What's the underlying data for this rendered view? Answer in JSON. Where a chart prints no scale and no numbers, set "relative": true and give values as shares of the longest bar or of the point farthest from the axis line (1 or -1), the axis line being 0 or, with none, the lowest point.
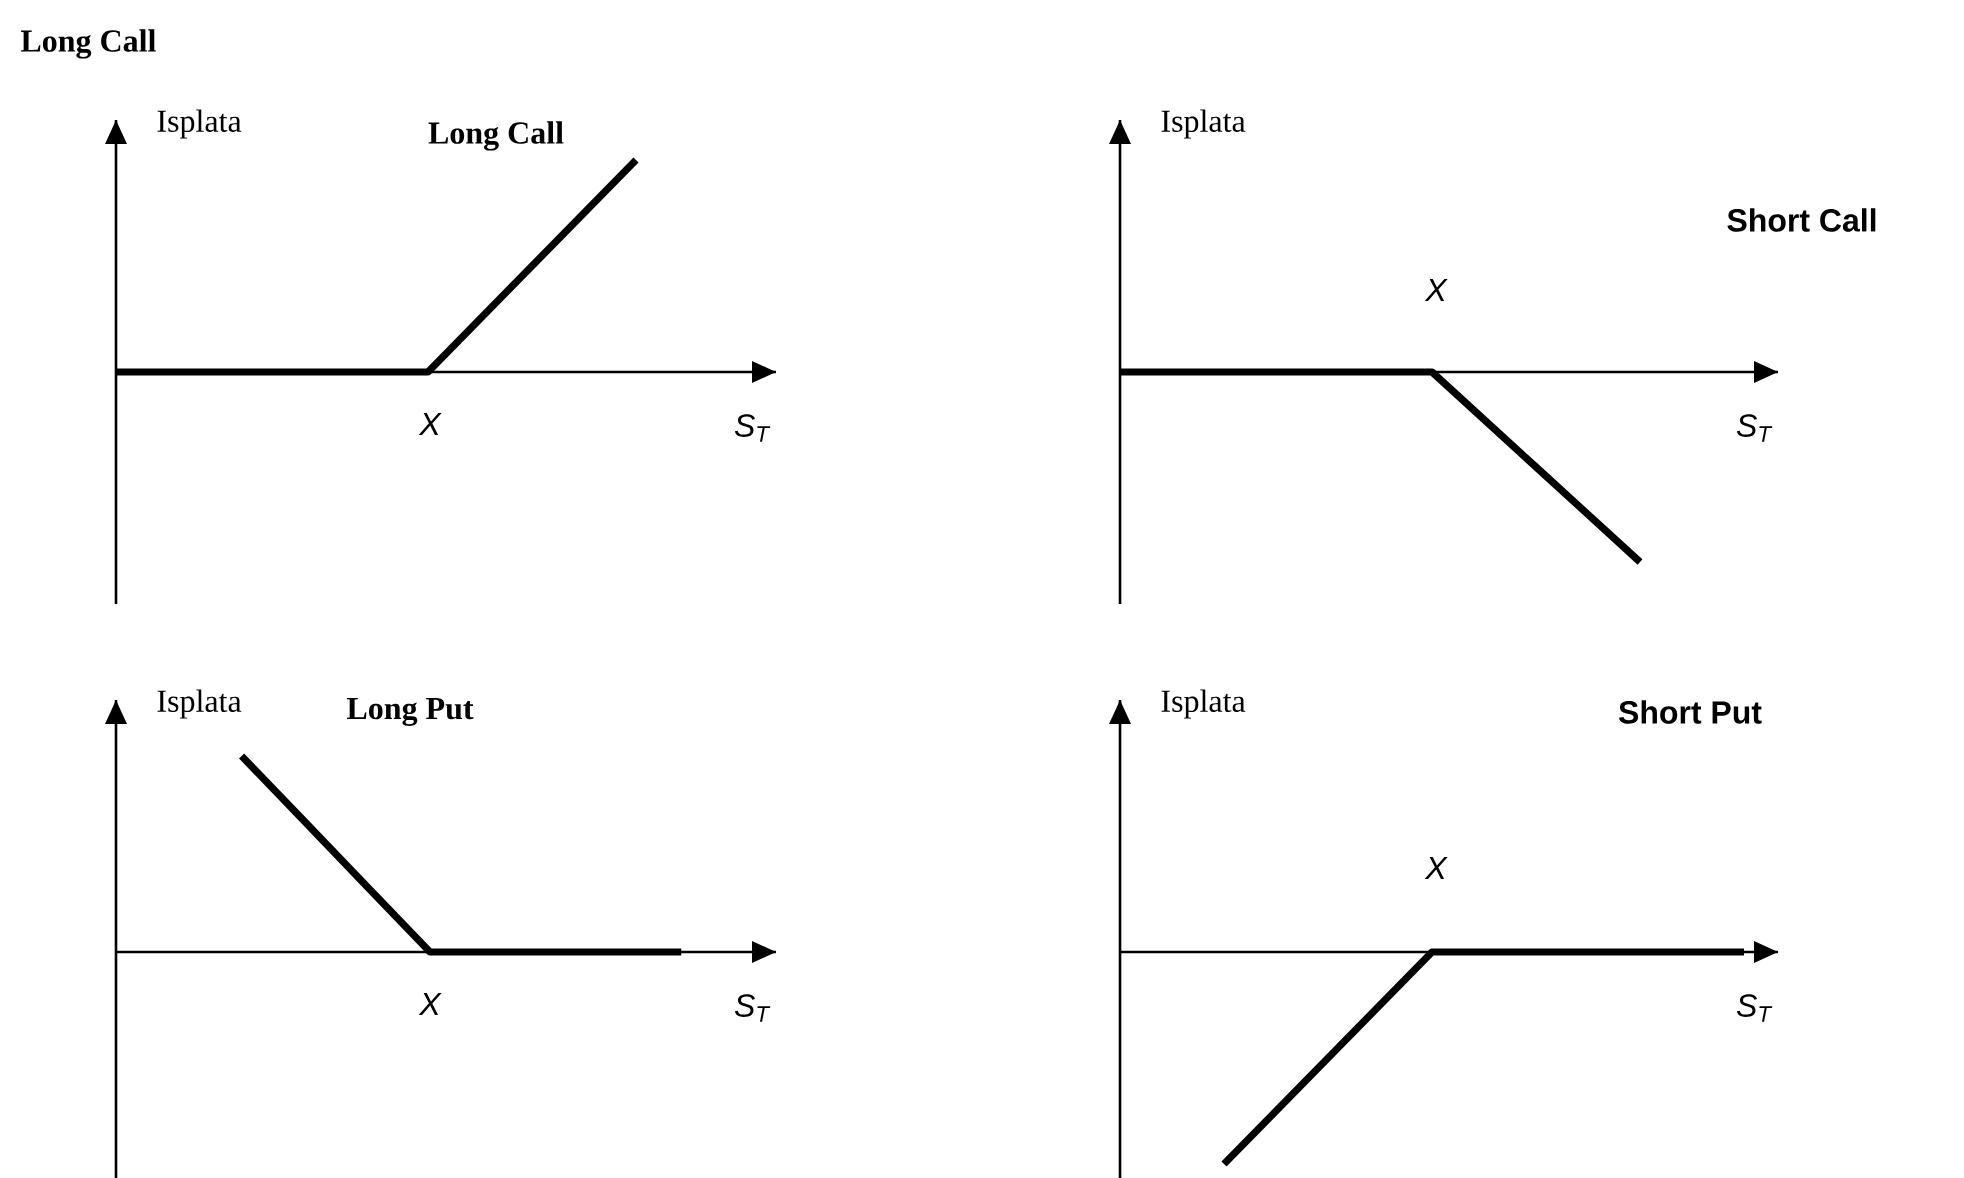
{
  "chart_data": [
    {
      "type": "line",
      "title": "Long Call",
      "xlabel": "S$_{T}$",
      "ylabel": "Isplata",
      "annotations": [
        "X",
        "Long Call"
      ],
      "relative": true,
      "categories": [
        null,
        null,
        null,
        null,
        null,
        null
      ],
      "series": [
        {
          "color": "#000000",
          "values": [
            0,
            0,
            0,
            0,
            0.5,
            1
          ]
        }
      ]
    },
    {
      "type": "line",
      "title": "Short Call",
      "xlabel": "S$_{T}$",
      "ylabel": "Isplata",
      "annotations": [
        "X"
      ],
      "relative": true,
      "categories": [
        null,
        null,
        null,
        null,
        null,
        null
      ],
      "series": [
        {
          "color": "#000000",
          "values": [
            0,
            0,
            0,
            0,
            -0.5,
            -1
          ]
        }
      ]
    },
    {
      "type": "line",
      "title": "Long Put",
      "xlabel": "S$_{T}$",
      "ylabel": "Isplata",
      "annotations": [
        "X"
      ],
      "relative": true,
      "categories": [
        null,
        null,
        null,
        null,
        null,
        null,
        null,
        null,
        null,
        null
      ],
      "series": [
        {
          "color": "#000000",
          "values": [
            null,
            null,
            1,
            0.667,
            0.333,
            0,
            0,
            0,
            0,
            0
          ]
        }
      ]
    },
    {
      "type": "line",
      "title": "Short Put",
      "xlabel": "S$_{T}$",
      "ylabel": "Isplata",
      "annotations": [
        "X"
      ],
      "relative": true,
      "categories": [
        null,
        null,
        null,
        null,
        null,
        null,
        null
      ],
      "series": [
        {
          "color": "#000000",
          "values": [
            null,
            -1,
            -0.5,
            0,
            0,
            0,
            0
          ]
        }
      ]
    }
  ]
}
